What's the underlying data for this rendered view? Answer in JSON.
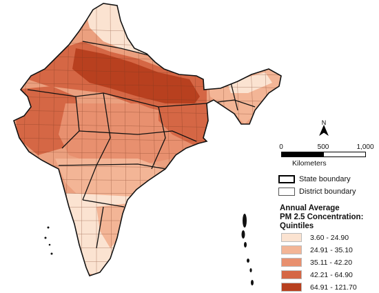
{
  "map": {
    "scale": {
      "ticks": [
        "0",
        "500",
        "1,000"
      ],
      "unit": "Kilometers"
    },
    "boundary_legend": {
      "state": "State boundary",
      "district": "District boundary"
    },
    "pm_legend": {
      "title_lines": [
        "Annual Average",
        "PM 2.5 Concentration:",
        "Quintiles"
      ],
      "classes": [
        {
          "label": "3.60 - 24.90",
          "color": "#fbe3d1"
        },
        {
          "label": "24.91 - 35.10",
          "color": "#f3b596"
        },
        {
          "label": "35.11 - 42.20",
          "color": "#e8906f"
        },
        {
          "label": "42.21 - 64.90",
          "color": "#d56745"
        },
        {
          "label": "64.91 - 121.70",
          "color": "#b8401f"
        }
      ]
    },
    "north_arrow_icon": "north-arrow-icon"
  }
}
